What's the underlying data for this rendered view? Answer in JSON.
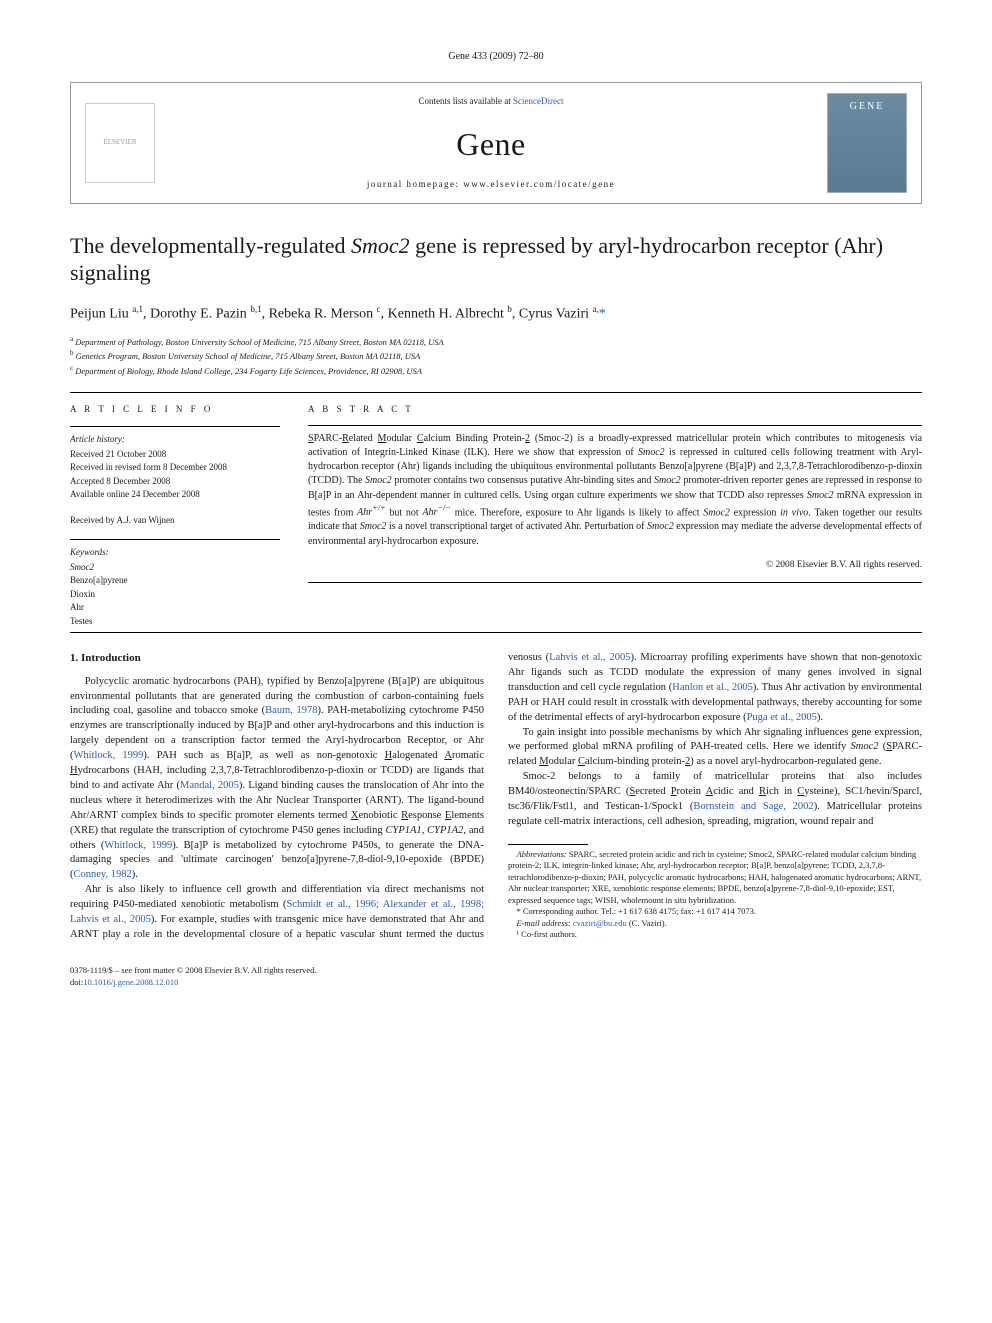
{
  "header_citation": "Gene 433 (2009) 72–80",
  "masthead": {
    "contents_text": "Contents lists available at ",
    "sd": "ScienceDirect",
    "journal": "Gene",
    "homepage_label": "journal homepage: ",
    "homepage_url": "www.elsevier.com/locate/gene",
    "publisher_logo_text": "ELSEVIER",
    "cover_text": "GENE"
  },
  "title_pre": "The developmentally-regulated ",
  "title_ital": "Smoc2",
  "title_post": " gene is repressed by aryl-hydrocarbon receptor (Ahr) signaling",
  "authors_html": "Peijun Liu <sup>a,1</sup>, Dorothy E. Pazin <sup>b,1</sup>, Rebeka R. Merson <sup>c</sup>, Kenneth H. Albrecht <sup>b</sup>, Cyrus Vaziri <sup>a,</sup><span class='star'>*</span>",
  "affiliations": [
    {
      "sup": "a",
      "text": "Department of Pathology, Boston University School of Medicine, 715 Albany Street, Boston MA 02118, USA"
    },
    {
      "sup": "b",
      "text": "Genetics Program, Boston University School of Medicine, 715 Albany Street, Boston MA 02118, USA"
    },
    {
      "sup": "c",
      "text": "Department of Biology, Rhode Island College, 234 Fogarty Life Sciences, Providence, RI 02908, USA"
    }
  ],
  "info": {
    "heading": "A R T I C L E   I N F O",
    "history_label": "Article history:",
    "history": [
      "Received 21 October 2008",
      "Received in revised form 8 December 2008",
      "Accepted 8 December 2008",
      "Available online 24 December 2008"
    ],
    "received_by": "Received by A.J. van Wijnen",
    "keywords_label": "Keywords:",
    "keywords": [
      "Smoc2",
      "Benzo[a]pyrene",
      "Dioxin",
      "Ahr",
      "Testes"
    ]
  },
  "abstract": {
    "heading": "A B S T R A C T",
    "text_html": "<span class='underline'>S</span>PARC-<span class='underline'>R</span>elated <span class='underline'>M</span>odular <span class='underline'>C</span>alcium Binding Protein-<span class='underline'>2</span> (Smoc-2) is a broadly-expressed matricellular protein which contributes to mitogenesis via activation of Integrin-Linked Kinase (ILK). Here we show that expression of <span class='ital'>Smoc2</span> is repressed in cultured cells following treatment with Aryl-hydrocarbon receptor (Ahr) ligands including the ubiquitous environmental pollutants Benzo[a]pyrene (B[a]P) and 2,3,7,8-Tetrachlorodibenzo-p-dioxin (TCDD). The <span class='ital'>Smoc2</span> promoter contains two consensus putative Ahr-binding sites and <span class='ital'>Smoc2</span> promoter-driven reporter genes are repressed in response to B[a]P in an Ahr-dependent manner in cultured cells. Using organ culture experiments we show that TCDD also represses <span class='ital'>Smoc2</span> mRNA expression in testes from <span class='ital'>Ahr<sup>+/+</sup></span> but not <span class='ital'>Ahr<sup>−/−</sup></span> mice. Therefore, exposure to Ahr ligands is likely to affect <span class='ital'>Smoc2</span> expression <span class='ital'>in vivo</span>. Taken together our results indicate that <span class='ital'>Smoc2</span> is a novel transcriptional target of activated Ahr. Perturbation of <span class='ital'>Smoc2</span> expression may mediate the adverse developmental effects of environmental aryl-hydrocarbon exposure.",
    "copyright": "© 2008 Elsevier B.V. All rights reserved."
  },
  "intro_heading": "1. Introduction",
  "body_html": "<p>Polycyclic aromatic hydrocarbons (PAH), typified by Benzo[a]pyrene (B[a]P) are ubiquitous environmental pollutants that are generated during the combustion of carbon-containing fuels including coal, gasoline and tobacco smoke (<span class='ref'>Baum, 1978</span>). PAH-metabolizing cytochrome P450 enzymes are transcriptionally induced by B[a]P and other aryl-hydrocarbons and this induction is largely dependent on a transcription factor termed the Aryl-hydrocarbon Receptor, or Ahr (<span class='ref'>Whitlock, 1999</span>). PAH such as B[a]P, as well as non-genotoxic <span class='underline'>H</span>alogenated <span class='underline'>A</span>romatic <span class='underline'>H</span>ydrocarbons (HAH, including 2,3,7,8-Tetrachlorodibenzo-p-dioxin or TCDD) are ligands that bind to and activate Ahr (<span class='ref'>Mandal, 2005</span>). Ligand binding causes the translocation of Ahr into the nucleus where it heterodimerizes with the Ahr Nuclear Transporter (ARNT). The ligand-bound Ahr/ARNT complex binds to specific promoter elements termed <span class='underline'>X</span>enobiotic <span class='underline'>R</span>esponse <span class='underline'>E</span>lements (XRE) that regulate the transcription of cytochrome P450 genes including <span class='ital'>CYP1A1</span>, <span class='ital'>CYP1A2</span>, and others (<span class='ref'>Whitlock, 1999</span>). B[a]P is metabolized by cytochrome P450s, to generate the DNA-damaging species and 'ultimate carcinogen' benzo[a]pyrene-7,8-diol-9,10-epoxide (BPDE) (<span class='ref'>Conney, 1982</span>).</p><p>Ahr is also likely to influence cell growth and differentiation via direct mechanisms not requiring P450-mediated xenobiotic metabolism (<span class='ref'>Schmidt et al., 1996; Alexander et al., 1998; Lahvis et al., 2005</span>). For example, studies with transgenic mice have demonstrated that Ahr and ARNT play a role in the developmental closure of a hepatic vascular shunt termed the ductus venosus (<span class='ref'>Lahvis et al., 2005</span>). Microarray profiling experiments have shown that non-genotoxic Ahr ligands such as TCDD modulate the expression of many genes involved in signal transduction and cell cycle regulation (<span class='ref'>Hanlon et al., 2005</span>). Thus Ahr activation by environmental PAH or HAH could result in crosstalk with developmental pathways, thereby accounting for some of the detrimental effects of aryl-hydrocarbon exposure (<span class='ref'>Puga et al., 2005</span>).</p><p>To gain insight into possible mechanisms by which Ahr signaling influences gene expression, we performed global mRNA profiling of PAH-treated cells. Here we identify <span class='ital'>Smoc2</span> (<span class='underline'>S</span>PARC-related <span class='underline'>M</span>odular <span class='underline'>C</span>alcium-binding protein-<span class='underline'>2</span>) as a novel aryl-hydrocarbon-regulated gene.</p><p>Smoc-2 belongs to a family of matricellular proteins that also includes BM40/osteonectin/SPARC (<span class='underline'>S</span>ecreted <span class='underline'>P</span>rotein <span class='underline'>A</span>cidic and <span class='underline'>R</span>ich in <span class='underline'>C</span>ysteine), SC1/hevin/Sparcl, tsc36/Flik/Fstl1, and Testican-1/Spock1 (<span class='ref'>Bornstein and Sage, 2002</span>). Matricellular proteins regulate cell-matrix interactions, cell adhesion, spreading, migration, wound repair and</p>",
  "footnotes": {
    "abbrev_label": "Abbreviations:",
    "abbrev_text": " SPARC, secreted protein acidic and rich in cysteine; Smoc2, SPARC-related modular calcium binding protein-2; ILK, integrin-linked kinase; Ahr, aryl-hydrocarbon receptor; B[a]P, benzo[a]pyrene; TCDD, 2,3,7,8-tetrachlorodibenzo-p-dioxin; PAH, polycyclic aromatic hydrocarbons; HAH, halogenated aromatic hydrocarbons; ARNT, Ahr nuclear transporter; XRE, xenobiotic response elements; BPDE, benzo[a]pyrene-7,8-diol-9,10-epoxide; EST, expressed sequence tags; WISH, wholemount in situ hybridization.",
    "corr": "* Corresponding author. Tel.: +1 617 638 4175; fax: +1 617 414 7073.",
    "email_label": "E-mail address: ",
    "email": "cvaziri@bu.edu",
    "email_who": " (C. Vaziri).",
    "cofirst": "¹ Co-first authors."
  },
  "footer": {
    "line1": "0378-1119/$ – see front matter © 2008 Elsevier B.V. All rights reserved.",
    "doi_label": "doi:",
    "doi": "10.1016/j.gene.2008.12.010"
  }
}
